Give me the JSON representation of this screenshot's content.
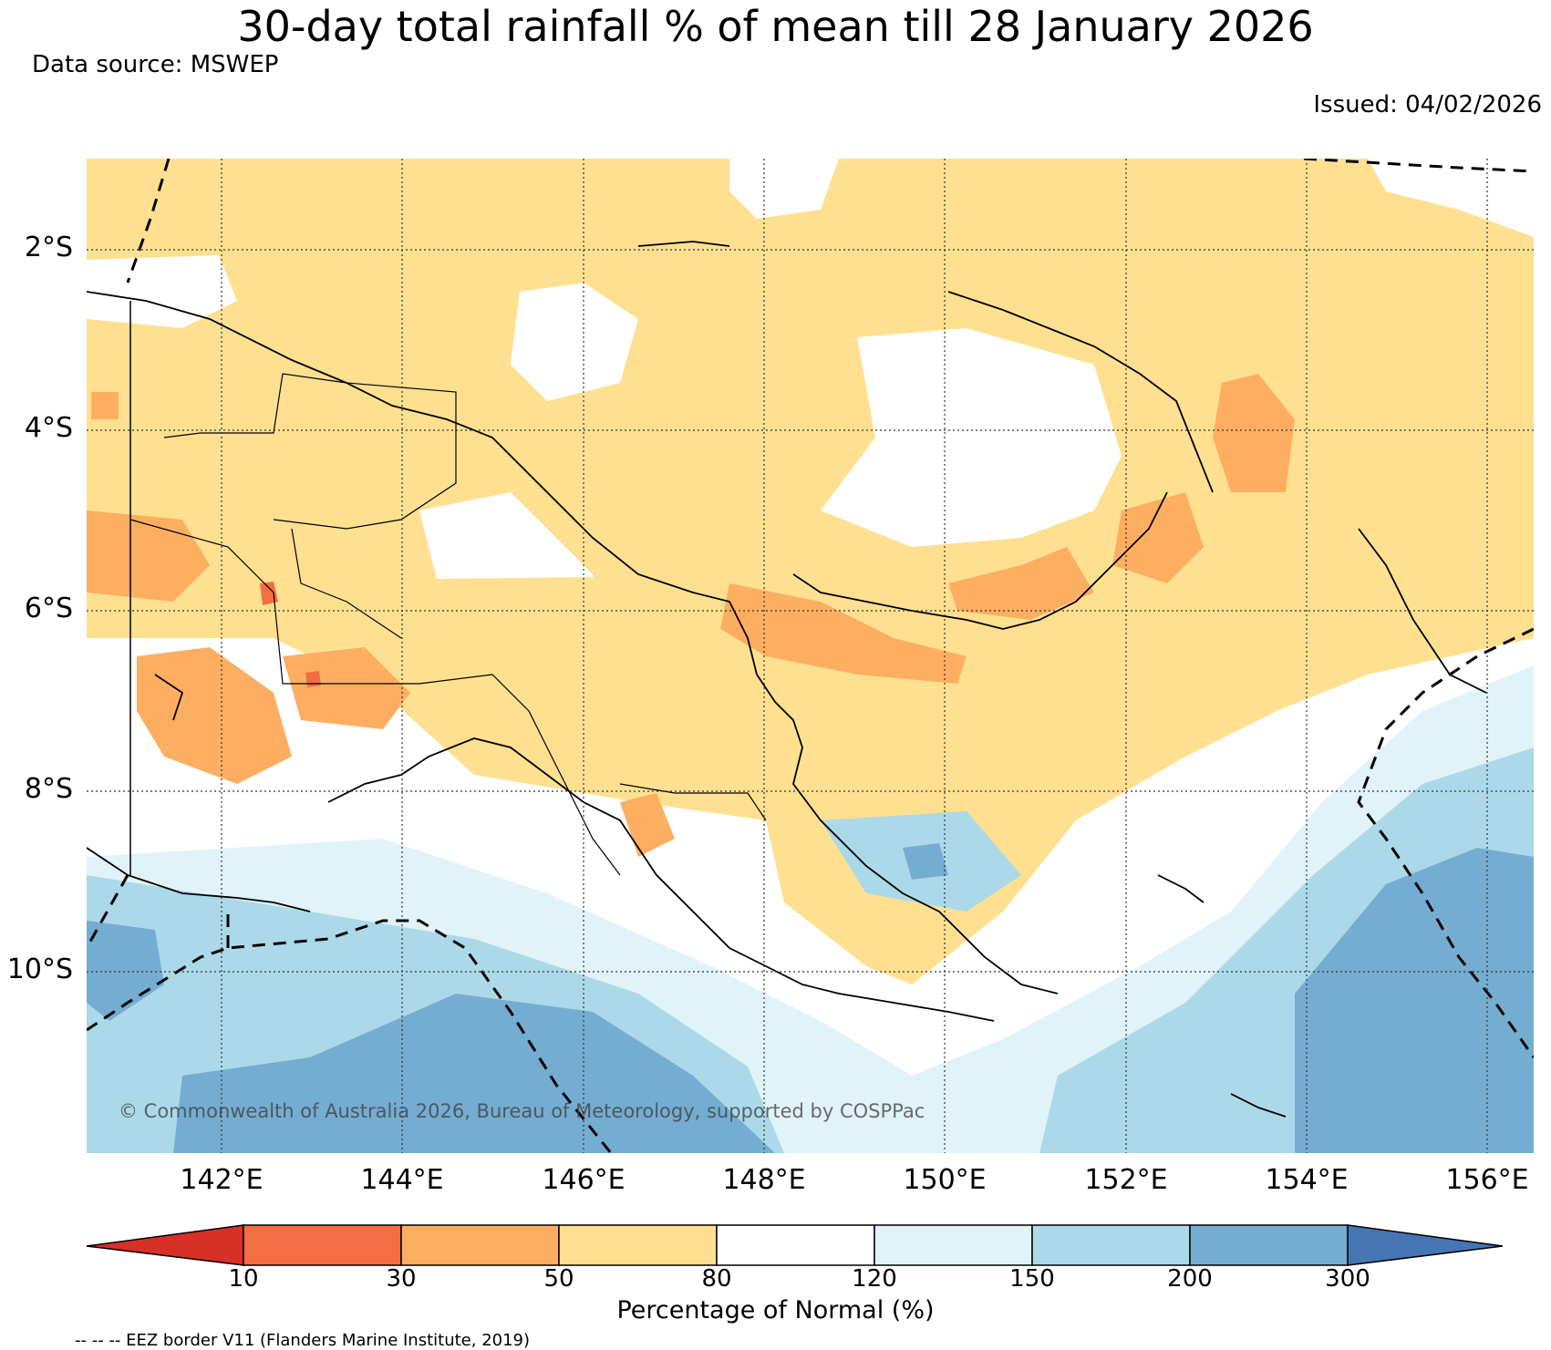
{
  "map": {
    "title": "30-day total rainfall % of mean till 28 January 2026",
    "data_source": "Data source: MSWEP",
    "issued": "Issued: 04/02/2026",
    "copyright": "© Commonwealth of Australia 2026, Bureau of Meteorology, supported by COSPPac",
    "latitude_labels": [
      "2°S",
      "4°S",
      "6°S",
      "8°S",
      "10°S"
    ],
    "longitude_labels": [
      "142°E",
      "144°E",
      "146°E",
      "148°E",
      "150°E",
      "152°E",
      "154°E",
      "156°E"
    ]
  },
  "legend": {
    "bins": [
      {
        "label": "<10",
        "color": "#d73027"
      },
      {
        "label": "10–30",
        "color": "#f46d43"
      },
      {
        "label": "30–50",
        "color": "#fdae61"
      },
      {
        "label": "50–80",
        "color": "#fee090"
      },
      {
        "label": "80–120",
        "color": "#ffffff"
      },
      {
        "label": "120–150",
        "color": "#e0f3f8"
      },
      {
        "label": "150–200",
        "color": "#abd9e9"
      },
      {
        "label": "200–300",
        "color": "#74add1"
      },
      {
        "label": ">300",
        "color": "#4575b4"
      }
    ],
    "ticks": [
      "10",
      "30",
      "50",
      "80",
      "120",
      "150",
      "200",
      "300"
    ],
    "axis_label": "Percentage of Normal (%)",
    "eez_note": "-- -- -- EEZ border V11 (Flanders Marine Institute, 2019)"
  }
}
